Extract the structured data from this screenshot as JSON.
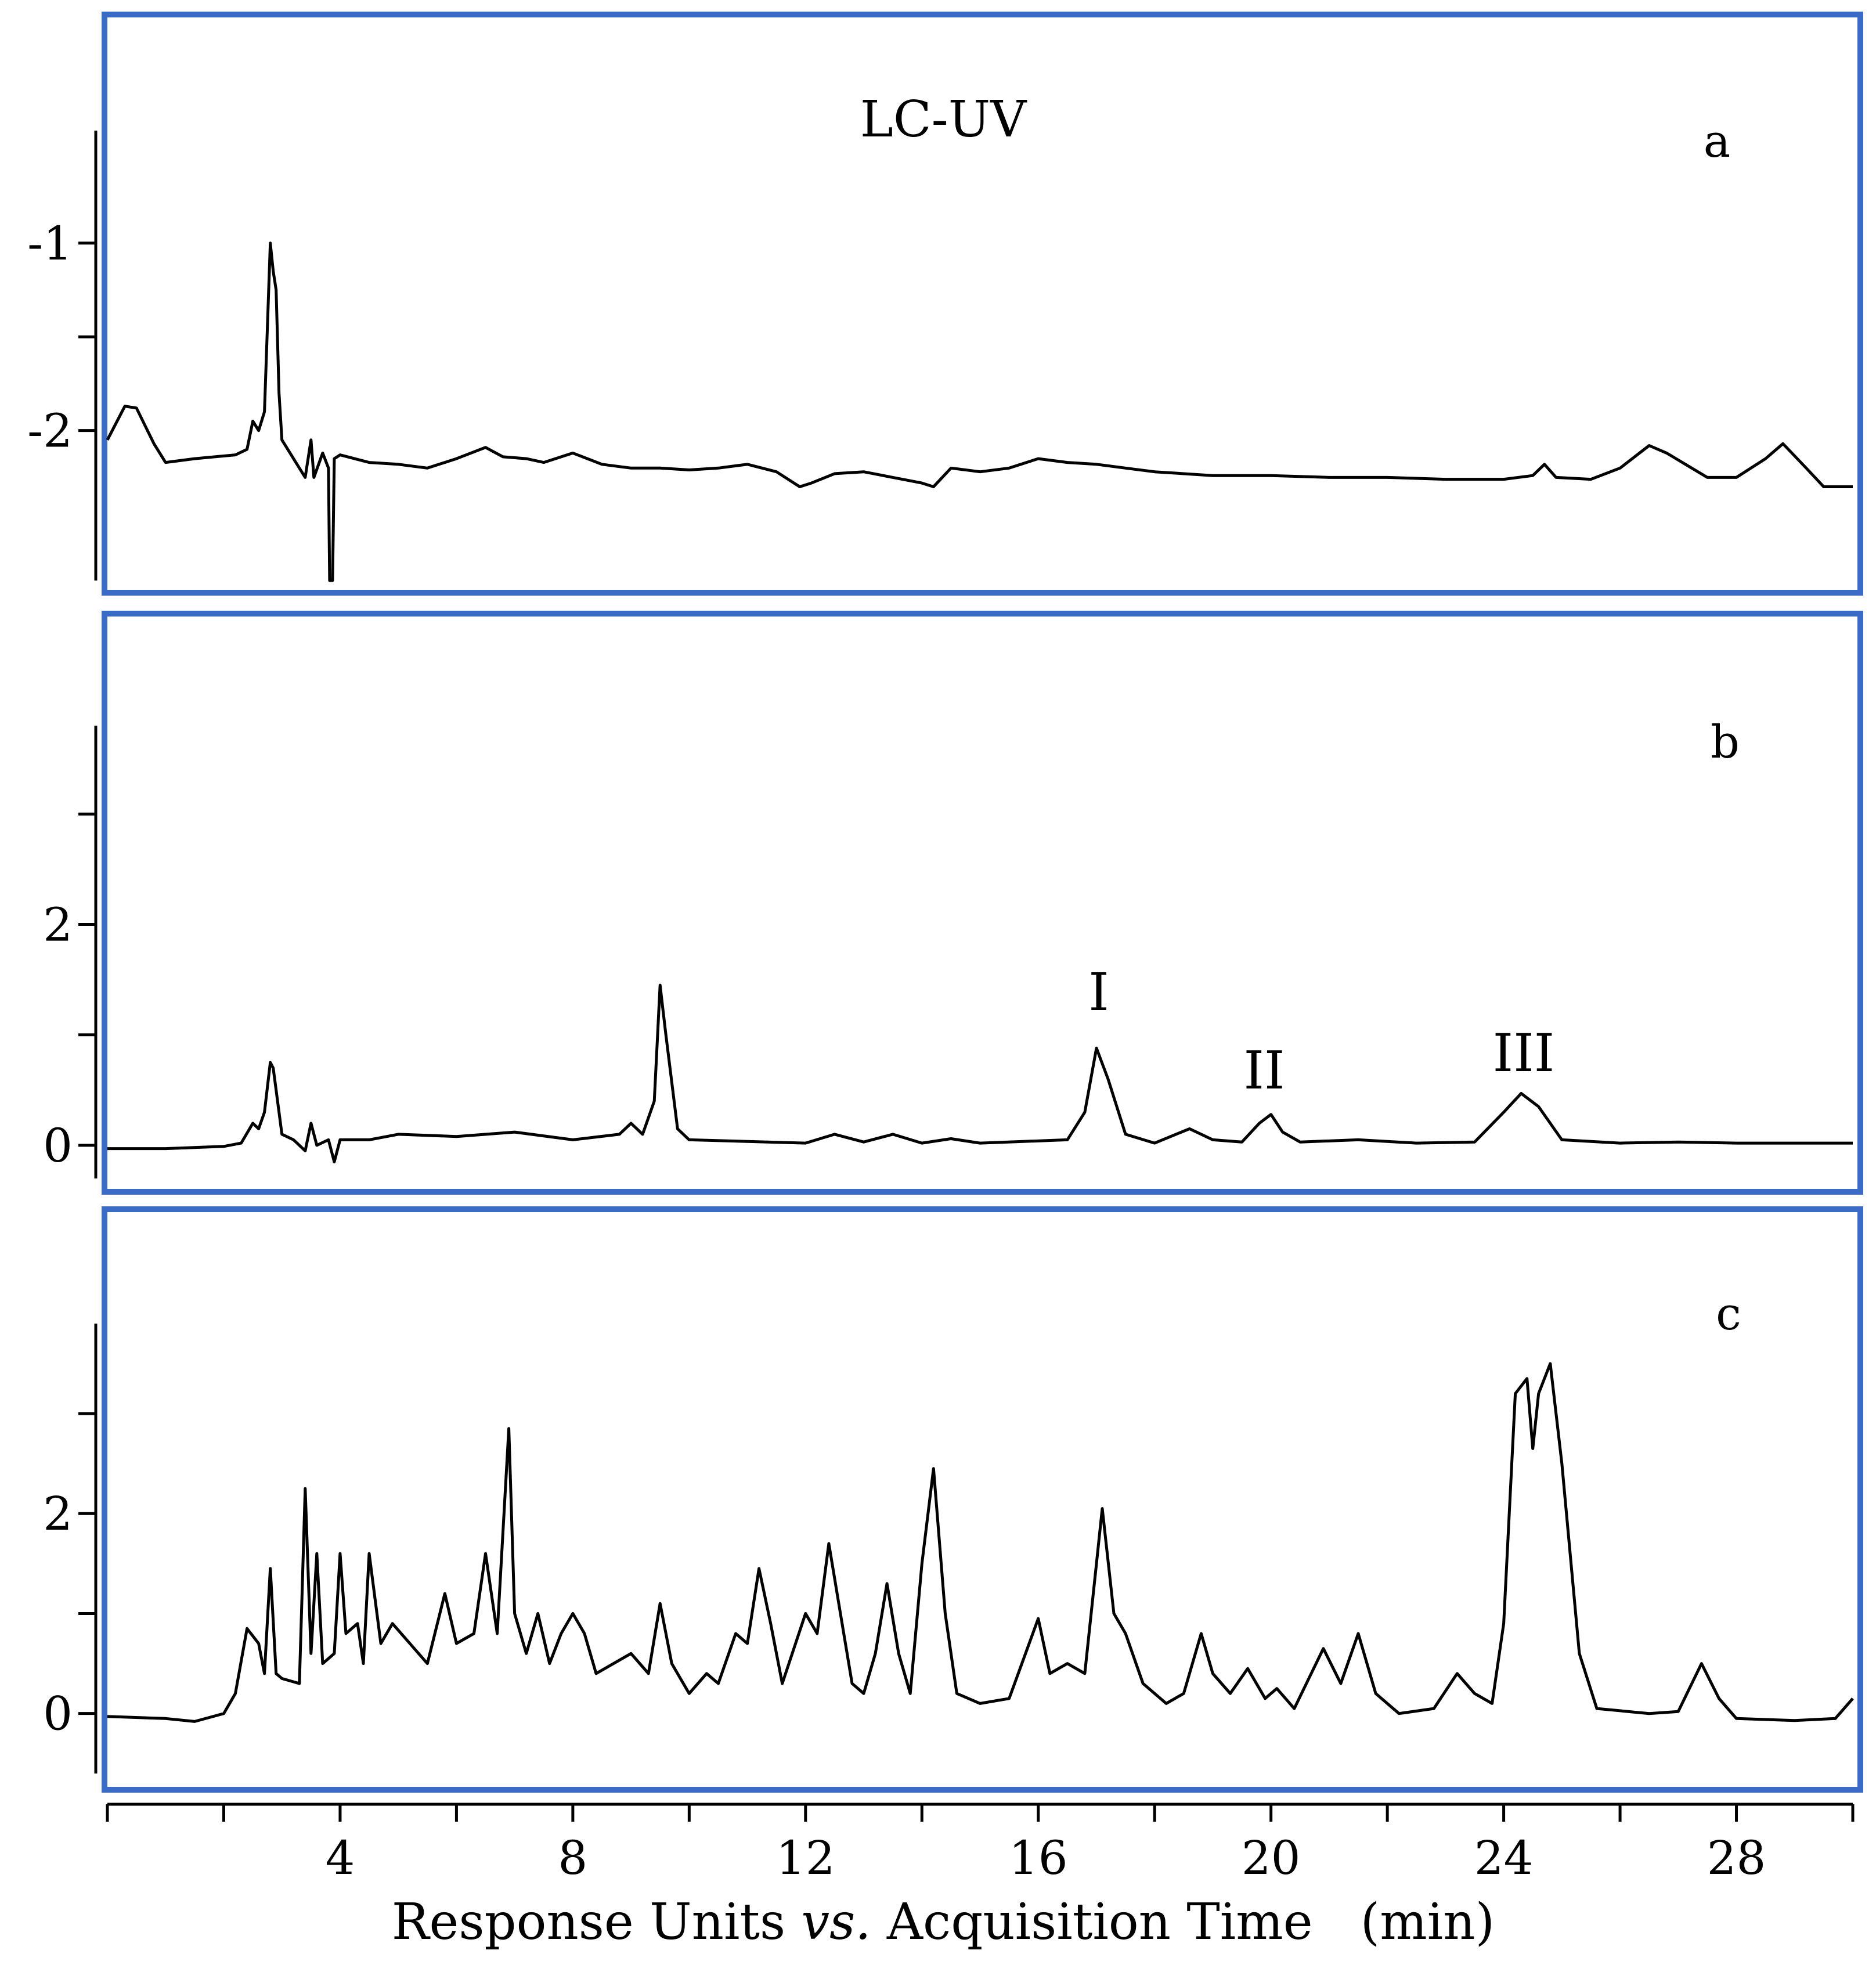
{
  "title": "LC-UV",
  "xlabel_parts": {
    "before": "Response Units ",
    "italic": "vs.",
    "after": " Acquisition Time   (min)"
  },
  "x_ticks": [
    {
      "value": 4,
      "label": "4"
    },
    {
      "value": 8,
      "label": "8"
    },
    {
      "value": 12,
      "label": "12"
    },
    {
      "value": 16,
      "label": "16"
    },
    {
      "value": 20,
      "label": "20"
    },
    {
      "value": 24,
      "label": "24"
    },
    {
      "value": 28,
      "label": "28"
    }
  ],
  "x_minor_ticks": [
    0,
    2,
    6,
    10,
    14,
    18,
    22,
    26,
    30
  ],
  "colors": {
    "frame": "#3a6bc6",
    "trace": "#000000",
    "axis": "#000000"
  },
  "chart_data": [
    {
      "type": "line",
      "panel": "a",
      "panel_label": "a",
      "title": "LC-UV",
      "xlim": [
        0,
        30
      ],
      "ylim": [
        -2.8,
        -0.4
      ],
      "y_axis": "inverted",
      "y_ticks": [
        {
          "value": -1,
          "label": "-1"
        },
        {
          "value": -2,
          "label": "-2"
        }
      ],
      "y_minor_ticks": [
        -1.5
      ],
      "series": [
        {
          "points": [
            [
              0,
              -2.05
            ],
            [
              0.3,
              -1.87
            ],
            [
              0.5,
              -1.88
            ],
            [
              0.8,
              -2.07
            ],
            [
              1.0,
              -2.17
            ],
            [
              1.5,
              -2.15
            ],
            [
              2.2,
              -2.13
            ],
            [
              2.4,
              -2.1
            ],
            [
              2.5,
              -1.95
            ],
            [
              2.6,
              -2.0
            ],
            [
              2.7,
              -1.9
            ],
            [
              2.8,
              -1.0
            ],
            [
              2.85,
              -1.15
            ],
            [
              2.9,
              -1.25
            ],
            [
              2.95,
              -1.8
            ],
            [
              3.0,
              -2.05
            ],
            [
              3.2,
              -2.15
            ],
            [
              3.4,
              -2.25
            ],
            [
              3.5,
              -2.05
            ],
            [
              3.55,
              -2.25
            ],
            [
              3.7,
              -2.12
            ],
            [
              3.8,
              -2.2
            ],
            [
              3.82,
              -2.8
            ],
            [
              3.87,
              -2.8
            ],
            [
              3.9,
              -2.15
            ],
            [
              4.0,
              -2.13
            ],
            [
              4.5,
              -2.17
            ],
            [
              5.0,
              -2.18
            ],
            [
              5.5,
              -2.2
            ],
            [
              6.0,
              -2.15
            ],
            [
              6.5,
              -2.09
            ],
            [
              6.8,
              -2.14
            ],
            [
              7.2,
              -2.15
            ],
            [
              7.5,
              -2.17
            ],
            [
              8.0,
              -2.12
            ],
            [
              8.5,
              -2.18
            ],
            [
              9.0,
              -2.2
            ],
            [
              9.5,
              -2.2
            ],
            [
              10.0,
              -2.21
            ],
            [
              10.5,
              -2.2
            ],
            [
              11.0,
              -2.18
            ],
            [
              11.5,
              -2.22
            ],
            [
              11.9,
              -2.3
            ],
            [
              12.1,
              -2.28
            ],
            [
              12.5,
              -2.23
            ],
            [
              13.0,
              -2.22
            ],
            [
              13.5,
              -2.25
            ],
            [
              14.0,
              -2.28
            ],
            [
              14.2,
              -2.3
            ],
            [
              14.5,
              -2.2
            ],
            [
              15.0,
              -2.22
            ],
            [
              15.5,
              -2.2
            ],
            [
              16.0,
              -2.15
            ],
            [
              16.5,
              -2.17
            ],
            [
              17.0,
              -2.18
            ],
            [
              17.5,
              -2.2
            ],
            [
              18.0,
              -2.22
            ],
            [
              19.0,
              -2.24
            ],
            [
              20.0,
              -2.24
            ],
            [
              21.0,
              -2.25
            ],
            [
              22.0,
              -2.25
            ],
            [
              23.0,
              -2.26
            ],
            [
              24.0,
              -2.26
            ],
            [
              24.5,
              -2.24
            ],
            [
              24.7,
              -2.18
            ],
            [
              24.9,
              -2.25
            ],
            [
              25.5,
              -2.26
            ],
            [
              26.0,
              -2.2
            ],
            [
              26.5,
              -2.08
            ],
            [
              26.8,
              -2.12
            ],
            [
              27.5,
              -2.25
            ],
            [
              28.0,
              -2.25
            ],
            [
              28.5,
              -2.15
            ],
            [
              28.8,
              -2.07
            ],
            [
              29.2,
              -2.2
            ],
            [
              29.5,
              -2.3
            ],
            [
              30.0,
              -2.3
            ]
          ]
        }
      ]
    },
    {
      "type": "line",
      "panel": "b",
      "panel_label": "b",
      "xlim": [
        0,
        30
      ],
      "ylim": [
        -0.3,
        3.8
      ],
      "y_ticks": [
        {
          "value": 0,
          "label": "0"
        },
        {
          "value": 2,
          "label": "2"
        }
      ],
      "y_minor_ticks": [
        1,
        3
      ],
      "annotations": [
        {
          "label": "I",
          "x": 17.0,
          "y": 1.4
        },
        {
          "label": "II",
          "x": 20.0,
          "y": 0.73
        },
        {
          "label": "III",
          "x": 24.3,
          "y": 0.82
        }
      ],
      "series": [
        {
          "points": [
            [
              0,
              -0.03
            ],
            [
              1.0,
              -0.03
            ],
            [
              2.0,
              -0.01
            ],
            [
              2.3,
              0.02
            ],
            [
              2.5,
              0.2
            ],
            [
              2.6,
              0.15
            ],
            [
              2.7,
              0.3
            ],
            [
              2.8,
              0.75
            ],
            [
              2.85,
              0.7
            ],
            [
              2.9,
              0.5
            ],
            [
              3.0,
              0.1
            ],
            [
              3.2,
              0.05
            ],
            [
              3.4,
              -0.05
            ],
            [
              3.5,
              0.2
            ],
            [
              3.6,
              0.0
            ],
            [
              3.8,
              0.05
            ],
            [
              3.9,
              -0.15
            ],
            [
              4.0,
              0.05
            ],
            [
              4.5,
              0.05
            ],
            [
              5.0,
              0.1
            ],
            [
              6.0,
              0.08
            ],
            [
              7.0,
              0.12
            ],
            [
              8.0,
              0.05
            ],
            [
              8.8,
              0.1
            ],
            [
              9.0,
              0.2
            ],
            [
              9.2,
              0.1
            ],
            [
              9.4,
              0.4
            ],
            [
              9.5,
              1.45
            ],
            [
              9.6,
              1.0
            ],
            [
              9.8,
              0.15
            ],
            [
              10.0,
              0.05
            ],
            [
              12.0,
              0.02
            ],
            [
              12.5,
              0.1
            ],
            [
              13.0,
              0.03
            ],
            [
              13.5,
              0.1
            ],
            [
              14.0,
              0.02
            ],
            [
              14.5,
              0.06
            ],
            [
              15.0,
              0.02
            ],
            [
              16.5,
              0.05
            ],
            [
              16.8,
              0.3
            ],
            [
              17.0,
              0.88
            ],
            [
              17.2,
              0.6
            ],
            [
              17.5,
              0.1
            ],
            [
              18.0,
              0.02
            ],
            [
              18.6,
              0.15
            ],
            [
              19.0,
              0.05
            ],
            [
              19.5,
              0.03
            ],
            [
              19.8,
              0.2
            ],
            [
              20.0,
              0.28
            ],
            [
              20.2,
              0.12
            ],
            [
              20.5,
              0.03
            ],
            [
              21.5,
              0.05
            ],
            [
              22.5,
              0.02
            ],
            [
              23.5,
              0.03
            ],
            [
              24.0,
              0.3
            ],
            [
              24.3,
              0.47
            ],
            [
              24.6,
              0.35
            ],
            [
              25.0,
              0.05
            ],
            [
              26.0,
              0.02
            ],
            [
              27.0,
              0.03
            ],
            [
              28.0,
              0.02
            ],
            [
              29.0,
              0.02
            ],
            [
              30.0,
              0.02
            ]
          ]
        }
      ]
    },
    {
      "type": "line",
      "panel": "c",
      "panel_label": "c",
      "xlim": [
        0,
        30
      ],
      "ylim": [
        -0.6,
        3.9
      ],
      "y_ticks": [
        {
          "value": 0,
          "label": "0"
        },
        {
          "value": 2,
          "label": "2"
        }
      ],
      "y_minor_ticks": [
        1,
        3
      ],
      "series": [
        {
          "points": [
            [
              0,
              -0.03
            ],
            [
              1.0,
              -0.05
            ],
            [
              1.5,
              -0.08
            ],
            [
              2.0,
              0.0
            ],
            [
              2.2,
              0.2
            ],
            [
              2.4,
              0.85
            ],
            [
              2.6,
              0.7
            ],
            [
              2.7,
              0.4
            ],
            [
              2.8,
              1.45
            ],
            [
              2.9,
              0.4
            ],
            [
              3.0,
              0.35
            ],
            [
              3.3,
              0.3
            ],
            [
              3.4,
              2.25
            ],
            [
              3.5,
              0.6
            ],
            [
              3.6,
              1.6
            ],
            [
              3.7,
              0.5
            ],
            [
              3.9,
              0.6
            ],
            [
              4.0,
              1.6
            ],
            [
              4.1,
              0.8
            ],
            [
              4.3,
              0.9
            ],
            [
              4.4,
              0.5
            ],
            [
              4.5,
              1.6
            ],
            [
              4.7,
              0.7
            ],
            [
              4.9,
              0.9
            ],
            [
              5.2,
              0.7
            ],
            [
              5.5,
              0.5
            ],
            [
              5.8,
              1.2
            ],
            [
              6.0,
              0.7
            ],
            [
              6.3,
              0.8
            ],
            [
              6.5,
              1.6
            ],
            [
              6.7,
              0.8
            ],
            [
              6.9,
              2.85
            ],
            [
              7.0,
              1.0
            ],
            [
              7.2,
              0.6
            ],
            [
              7.4,
              1.0
            ],
            [
              7.6,
              0.5
            ],
            [
              7.8,
              0.8
            ],
            [
              8.0,
              1.0
            ],
            [
              8.2,
              0.8
            ],
            [
              8.4,
              0.4
            ],
            [
              9.0,
              0.6
            ],
            [
              9.3,
              0.4
            ],
            [
              9.5,
              1.1
            ],
            [
              9.7,
              0.5
            ],
            [
              10.0,
              0.2
            ],
            [
              10.3,
              0.4
            ],
            [
              10.5,
              0.3
            ],
            [
              10.8,
              0.8
            ],
            [
              11.0,
              0.7
            ],
            [
              11.2,
              1.45
            ],
            [
              11.4,
              0.9
            ],
            [
              11.6,
              0.3
            ],
            [
              12.0,
              1.0
            ],
            [
              12.2,
              0.8
            ],
            [
              12.4,
              1.7
            ],
            [
              12.6,
              1.0
            ],
            [
              12.8,
              0.3
            ],
            [
              13.0,
              0.2
            ],
            [
              13.2,
              0.6
            ],
            [
              13.4,
              1.3
            ],
            [
              13.6,
              0.6
            ],
            [
              13.8,
              0.2
            ],
            [
              14.0,
              1.5
            ],
            [
              14.2,
              2.45
            ],
            [
              14.4,
              1.0
            ],
            [
              14.6,
              0.2
            ],
            [
              15.0,
              0.1
            ],
            [
              15.5,
              0.15
            ],
            [
              16.0,
              0.95
            ],
            [
              16.2,
              0.4
            ],
            [
              16.5,
              0.5
            ],
            [
              16.8,
              0.4
            ],
            [
              17.0,
              1.5
            ],
            [
              17.1,
              2.05
            ],
            [
              17.3,
              1.0
            ],
            [
              17.5,
              0.8
            ],
            [
              17.8,
              0.3
            ],
            [
              18.2,
              0.1
            ],
            [
              18.5,
              0.2
            ],
            [
              18.8,
              0.8
            ],
            [
              19.0,
              0.4
            ],
            [
              19.3,
              0.2
            ],
            [
              19.6,
              0.45
            ],
            [
              19.9,
              0.15
            ],
            [
              20.1,
              0.25
            ],
            [
              20.4,
              0.05
            ],
            [
              20.9,
              0.65
            ],
            [
              21.2,
              0.3
            ],
            [
              21.5,
              0.8
            ],
            [
              21.8,
              0.2
            ],
            [
              22.2,
              0.0
            ],
            [
              22.8,
              0.05
            ],
            [
              23.2,
              0.4
            ],
            [
              23.5,
              0.2
            ],
            [
              23.8,
              0.1
            ],
            [
              24.0,
              0.9
            ],
            [
              24.2,
              3.2
            ],
            [
              24.4,
              3.35
            ],
            [
              24.5,
              2.65
            ],
            [
              24.6,
              3.2
            ],
            [
              24.8,
              3.5
            ],
            [
              25.0,
              2.5
            ],
            [
              25.3,
              0.6
            ],
            [
              25.6,
              0.05
            ],
            [
              26.5,
              0.0
            ],
            [
              27.0,
              0.02
            ],
            [
              27.4,
              0.5
            ],
            [
              27.7,
              0.15
            ],
            [
              28.0,
              -0.05
            ],
            [
              29.0,
              -0.07
            ],
            [
              29.7,
              -0.05
            ],
            [
              30.0,
              0.15
            ]
          ]
        }
      ]
    }
  ]
}
